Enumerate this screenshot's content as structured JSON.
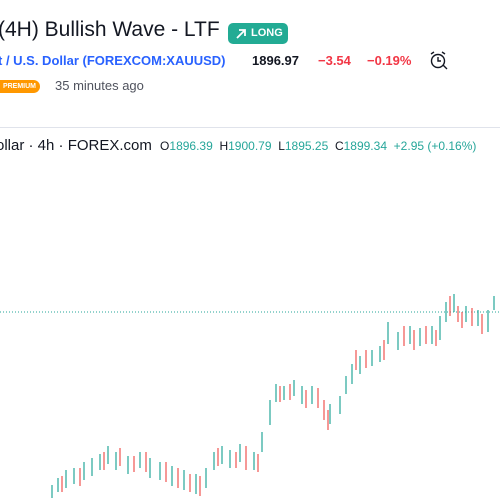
{
  "header": {
    "title": "(4H) Bullish Wave - LTF",
    "badge": "LONG",
    "symbol": "t / U.S. Dollar (FOREXCOM:XAUUSD)",
    "price": "1896.97",
    "change": "−3.54",
    "change_percent": "−0.19%",
    "tag": "PREMIUM",
    "published": "35 minutes ago"
  },
  "legend": {
    "symbol": "ollar · 4h · FOREX.com",
    "open_label": "O",
    "open": "1896.39",
    "high_label": "H",
    "high": "1900.79",
    "low_label": "L",
    "low": "1895.25",
    "close_label": "C",
    "close": "1899.34",
    "change": "+2.95 (+0.16%)"
  }
}
